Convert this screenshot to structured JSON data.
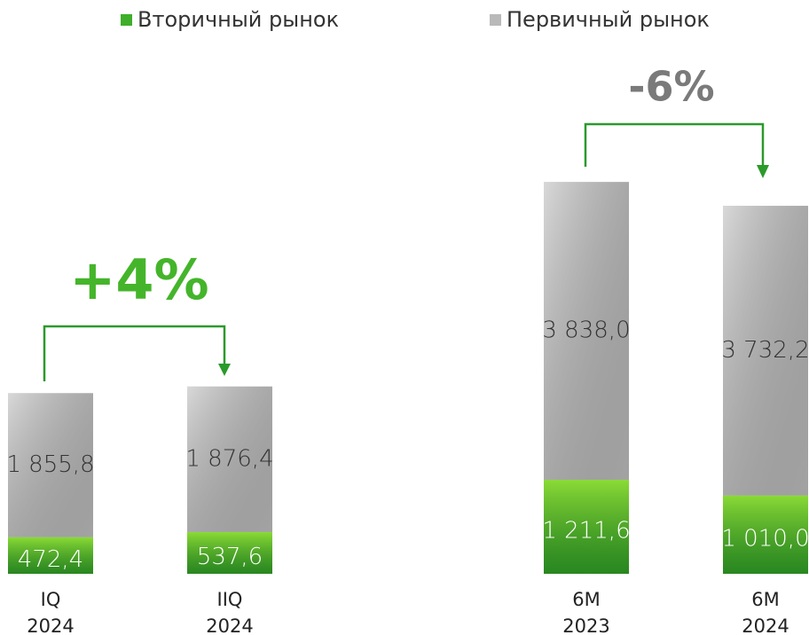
{
  "chart_data": {
    "type": "stacked_bar",
    "categories": [
      "IQ 2024",
      "IIQ 2024",
      "6M 2023",
      "6M 2024"
    ],
    "series": [
      {
        "name": "Вторичный рынок",
        "color": "#3fae2a",
        "values": [
          472.4,
          537.6,
          1211.6,
          1010.0
        ],
        "value_labels": [
          "472,4",
          "537,6",
          "1 211,6",
          "1 010,0"
        ]
      },
      {
        "name": "Первичный рынок",
        "color": "#b9b9b9",
        "values": [
          1855.8,
          1876.4,
          3838.0,
          3732.2
        ],
        "value_labels": [
          "1 855,8",
          "1 876,4",
          "3 838,0",
          "3 732,2"
        ]
      }
    ],
    "annotations": [
      "+4%",
      "-6%"
    ]
  }
}
